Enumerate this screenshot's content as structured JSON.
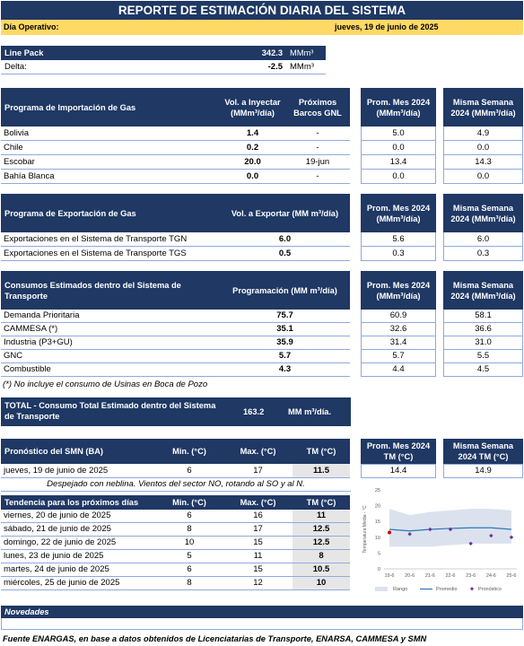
{
  "title": "REPORTE DE ESTIMACIÓN DIARIA DEL SISTEMA",
  "dia_operativo": {
    "label": "Día Operativo:",
    "value": "jueves, 19 de junio de 2025"
  },
  "line_pack": {
    "label": "Line Pack",
    "value": "342.3",
    "unit": "MMm³",
    "delta_label": "Delta:",
    "delta_value": "-2.5",
    "delta_unit": "MMm³"
  },
  "importacion": {
    "headers": [
      "Programa de Importación de Gas",
      "Vol. a Inyectar (MMm³/día)",
      "Próximos Barcos GNL",
      "Prom. Mes 2024 (MMm³/día)",
      "Misma Semana 2024 (MMm³/día)"
    ],
    "rows": [
      {
        "name": "Bolivia",
        "vol": "1.4",
        "barcos": "-",
        "prom": "5.0",
        "semana": "4.9"
      },
      {
        "name": "Chile",
        "vol": "0.2",
        "barcos": "-",
        "prom": "0.0",
        "semana": "0.0"
      },
      {
        "name": "Escobar",
        "vol": "20.0",
        "barcos": "19-jun",
        "prom": "13.4",
        "semana": "14.3"
      },
      {
        "name": "Bahía Blanca",
        "vol": "0.0",
        "barcos": "-",
        "prom": "0.0",
        "semana": "0.0"
      }
    ]
  },
  "exportacion": {
    "headers": [
      "Programa de Exportación de Gas",
      "Vol. a Exportar (MM m³/día)",
      "Prom. Mes 2024 (MMm³/día)",
      "Misma Semana 2024 (MMm³/día)"
    ],
    "rows": [
      {
        "name": "Exportaciones en el Sistema de Transporte TGN",
        "vol": "6.0",
        "prom": "5.6",
        "semana": "6.0"
      },
      {
        "name": "Exportaciones en el Sistema de Transporte TGS",
        "vol": "0.5",
        "prom": "0.3",
        "semana": "0.3"
      }
    ]
  },
  "consumos": {
    "headers": [
      "Consumos Estimados dentro del Sistema de Transporte",
      "Programación (MM m³/día)",
      "Prom. Mes 2024 (MMm³/día)",
      "Misma Semana 2024 (MMm³/día)"
    ],
    "rows": [
      {
        "name": "Demanda Prioritaria",
        "vol": "75.7",
        "prom": "60.9",
        "semana": "58.1"
      },
      {
        "name": "CAMMESA (*)",
        "vol": "35.1",
        "prom": "32.6",
        "semana": "36.6"
      },
      {
        "name": "Industria (P3+GU)",
        "vol": "35.9",
        "prom": "31.4",
        "semana": "31.0"
      },
      {
        "name": "GNC",
        "vol": "5.7",
        "prom": "5.7",
        "semana": "5.5"
      },
      {
        "name": "Combustible",
        "vol": "4.3",
        "prom": "4.4",
        "semana": "4.5"
      }
    ],
    "note": "(*) No incluye el consumo de Usinas en Boca de Pozo"
  },
  "total": {
    "label": "TOTAL - Consumo Total Estimado dentro del Sistema de Transporte",
    "value": "163.2",
    "unit": "MM m³/día."
  },
  "pronostico": {
    "headers": [
      "Pronóstico del SMN (BA)",
      "Min. (°C)",
      "Max. (°C)",
      "TM (°C)",
      "Prom. Mes 2024 TM (°C)",
      "Misma Semana 2024 TM (°C)"
    ],
    "row": {
      "date": "jueves, 19 de junio de 2025",
      "min": "6",
      "max": "17",
      "tm": "11.5",
      "prom": "14.4",
      "semana": "14.9"
    },
    "description": "Despejado con neblina. Vientos del sector NO, rotando al SO y al N."
  },
  "tendencia": {
    "headers": [
      "Tendencia para los próximos días",
      "Min. (°C)",
      "Max. (°C)",
      "TM (°C)"
    ],
    "rows": [
      {
        "date": "viernes, 20 de junio de 2025",
        "min": "6",
        "max": "16",
        "tm": "11"
      },
      {
        "date": "sábado, 21 de junio de 2025",
        "min": "8",
        "max": "17",
        "tm": "12.5"
      },
      {
        "date": "domingo, 22 de junio de 2025",
        "min": "10",
        "max": "15",
        "tm": "12.5"
      },
      {
        "date": "lunes, 23 de junio de 2025",
        "min": "5",
        "max": "11",
        "tm": "8"
      },
      {
        "date": "martes, 24 de junio de 2025",
        "min": "6",
        "max": "15",
        "tm": "10.5"
      },
      {
        "date": "miércoles, 25 de junio de 2025",
        "min": "8",
        "max": "12",
        "tm": "10"
      }
    ]
  },
  "chart_data": {
    "type": "line",
    "x": [
      "19-6",
      "20-6",
      "21-6",
      "22-6",
      "23-6",
      "24-6",
      "25-6"
    ],
    "ylabel": "Temperatura Media - °C",
    "ylim": [
      0,
      25
    ],
    "yticks": [
      "0",
      "5",
      "10",
      "15",
      "20",
      "25"
    ],
    "series": [
      {
        "name": "Rango",
        "type": "area",
        "low": [
          7,
          7,
          7,
          7.5,
          8,
          8,
          8
        ],
        "high": [
          19,
          17,
          18,
          18.5,
          19,
          19,
          18.5
        ],
        "color": "#dbe2ee"
      },
      {
        "name": "Promedio",
        "type": "line",
        "values": [
          12.5,
          12,
          12.5,
          12.8,
          13,
          13,
          12.5
        ],
        "color": "#2e75b6"
      },
      {
        "name": "Pronóstico",
        "type": "scatter",
        "values": [
          11.5,
          11,
          12.5,
          12.5,
          8,
          10.5,
          10
        ],
        "colors": [
          "#c00000",
          "#7030a0",
          "#7030a0",
          "#7030a0",
          "#7030a0",
          "#7030a0",
          "#7030a0"
        ]
      }
    ],
    "legend": "bottom"
  },
  "novedades": {
    "label": "Novedades"
  },
  "footer": "Fuente ENARGAS, en base a datos obtenidos de Licenciatarias de Transporte, ENARSA, CAMMESA y SMN"
}
